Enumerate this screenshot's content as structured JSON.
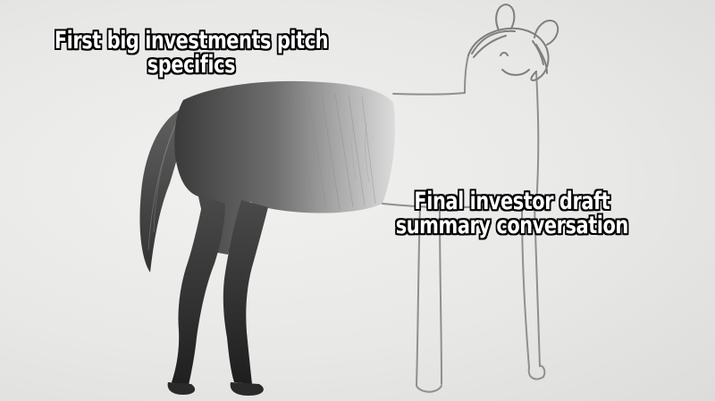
{
  "meme": {
    "caption_top": "First big investments pitch specifics",
    "caption_right": "Final investor draft summary conversation"
  }
}
